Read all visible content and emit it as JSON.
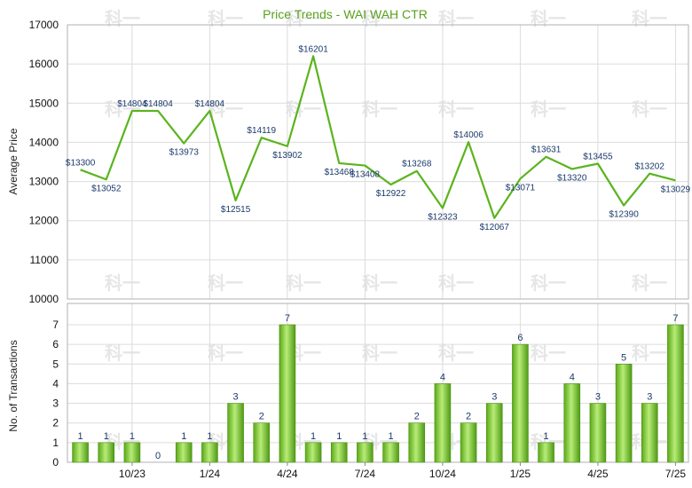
{
  "chart_data": [
    {
      "type": "line",
      "title": "Price Trends - WAI WAH CTR",
      "ylabel": "Average Price",
      "ylim": [
        10000,
        17000
      ],
      "yticks": [
        10000,
        11000,
        12000,
        13000,
        14000,
        15000,
        16000,
        17000
      ],
      "grid": true,
      "color": "#5ab41e",
      "values": [
        13300,
        13052,
        14804,
        14804,
        13973,
        14804,
        12515,
        14119,
        13902,
        16201,
        13468,
        13408,
        12922,
        13268,
        12323,
        14006,
        12067,
        13071,
        13631,
        13320,
        13455,
        12390,
        13202,
        13029
      ],
      "labels": [
        "$13300",
        "$13052",
        "$14804",
        "$14804",
        "$13973",
        "$14804",
        "$12515",
        "$14119",
        "$13902",
        "$16201",
        "$13468",
        "$13408",
        "$12922",
        "$13268",
        "$12323",
        "$14006",
        "$12067",
        "$13071",
        "$13631",
        "$13320",
        "$13455",
        "$12390",
        "$13202",
        "$13029"
      ]
    },
    {
      "type": "bar",
      "ylabel": "No. of Transactions",
      "ylim": [
        0,
        7
      ],
      "yticks": [
        0,
        1,
        2,
        3,
        4,
        5,
        6,
        7
      ],
      "grid": true,
      "color": "#6cc02a",
      "values": [
        1,
        1,
        1,
        0,
        1,
        1,
        3,
        2,
        7,
        1,
        1,
        1,
        1,
        2,
        4,
        2,
        3,
        6,
        1,
        4,
        3,
        5,
        3,
        7
      ],
      "xticks": [
        {
          "index": 2.5,
          "label": "10/23"
        },
        {
          "index": 5.5,
          "label": "1/24"
        },
        {
          "index": 8.5,
          "label": "4/24"
        },
        {
          "index": 11.5,
          "label": "7/24"
        },
        {
          "index": 14.5,
          "label": "10/24"
        },
        {
          "index": 17.5,
          "label": "1/25"
        },
        {
          "index": 20.5,
          "label": "4/25"
        },
        {
          "index": 23.5,
          "label": "7/25"
        }
      ]
    }
  ],
  "watermark": "科一"
}
